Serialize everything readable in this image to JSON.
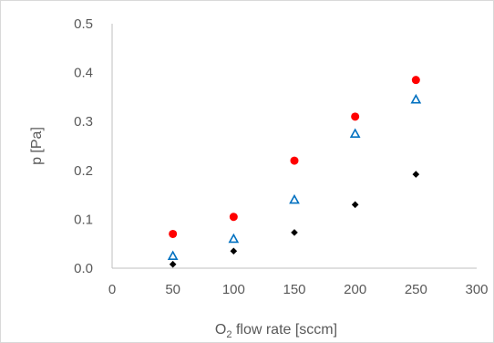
{
  "chart_data": {
    "type": "scatter",
    "title": "",
    "xlabel": {
      "prefix": "O",
      "subscript": "2",
      "suffix": " flow rate [sccm]"
    },
    "ylabel": "p [Pa]",
    "xlim": [
      0,
      300
    ],
    "ylim": [
      0,
      0.5
    ],
    "x_ticks": [
      "0",
      "50",
      "100",
      "150",
      "200",
      "250",
      "300"
    ],
    "y_ticks": [
      "0.0",
      "0.1",
      "0.2",
      "0.3",
      "0.4",
      "0.5"
    ],
    "grid": false,
    "legend": "none",
    "series": [
      {
        "marker": "circle",
        "color": "#ff0000",
        "points": [
          {
            "x": 50,
            "y": 0.07
          },
          {
            "x": 100,
            "y": 0.105
          },
          {
            "x": 150,
            "y": 0.22
          },
          {
            "x": 200,
            "y": 0.31
          },
          {
            "x": 250,
            "y": 0.385
          }
        ]
      },
      {
        "marker": "triangle-open",
        "color": "#0070c0",
        "points": [
          {
            "x": 50,
            "y": 0.025
          },
          {
            "x": 100,
            "y": 0.06
          },
          {
            "x": 150,
            "y": 0.14
          },
          {
            "x": 200,
            "y": 0.275
          },
          {
            "x": 250,
            "y": 0.345
          }
        ]
      },
      {
        "marker": "diamond",
        "color": "#000000",
        "points": [
          {
            "x": 50,
            "y": 0.008
          },
          {
            "x": 100,
            "y": 0.035
          },
          {
            "x": 150,
            "y": 0.073
          },
          {
            "x": 200,
            "y": 0.13
          },
          {
            "x": 250,
            "y": 0.192
          }
        ]
      }
    ]
  }
}
